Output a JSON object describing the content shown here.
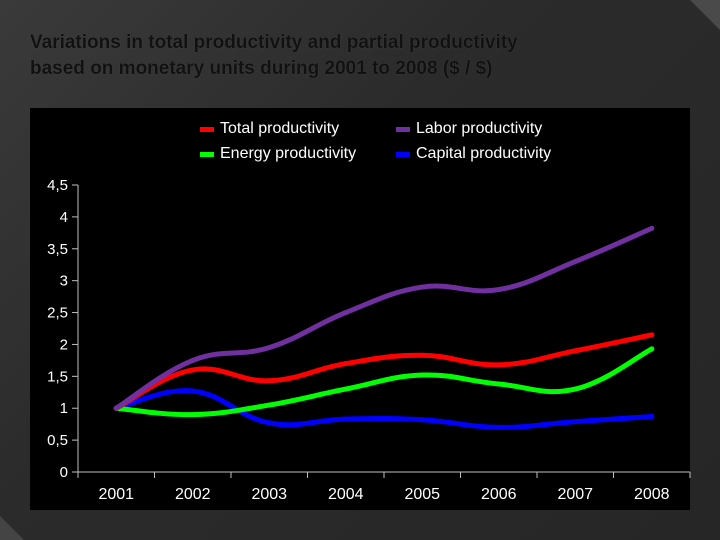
{
  "title_lines": [
    "Variations in total productivity and partial productivity",
    "based on monetary units during 2001 to 2008 ($ / $)"
  ],
  "colors": {
    "total": "#ff0000",
    "labor": "#7030a0",
    "energy": "#00ff00",
    "capital": "#0000ff"
  },
  "chart_data": {
    "type": "line",
    "title": "Variations in total productivity and partial productivity based on monetary units during 2001 to 2008 ($ / $)",
    "xlabel": "",
    "ylabel": "",
    "categories": [
      "2001",
      "2002",
      "2003",
      "2004",
      "2005",
      "2006",
      "2007",
      "2008"
    ],
    "ylim": [
      0,
      4.5
    ],
    "yticks": [
      "0",
      "0,5",
      "1",
      "1,5",
      "2",
      "2,5",
      "3",
      "3,5",
      "4",
      "4,5"
    ],
    "grid": false,
    "legend_position": "top",
    "smooth": true,
    "series": [
      {
        "name": "Total productivity",
        "color": "#ff0000",
        "values": [
          1.0,
          1.6,
          1.43,
          1.7,
          1.83,
          1.68,
          1.9,
          2.15
        ]
      },
      {
        "name": "Labor productivity",
        "color": "#7030a0",
        "values": [
          1.0,
          1.75,
          1.95,
          2.5,
          2.9,
          2.86,
          3.3,
          3.82
        ]
      },
      {
        "name": "Energy productivity",
        "color": "#00ff00",
        "values": [
          1.0,
          0.9,
          1.05,
          1.3,
          1.52,
          1.38,
          1.3,
          1.93
        ]
      },
      {
        "name": "Capital productivity",
        "color": "#0000ff",
        "values": [
          1.0,
          1.27,
          0.77,
          0.83,
          0.82,
          0.7,
          0.79,
          0.87
        ]
      }
    ]
  }
}
